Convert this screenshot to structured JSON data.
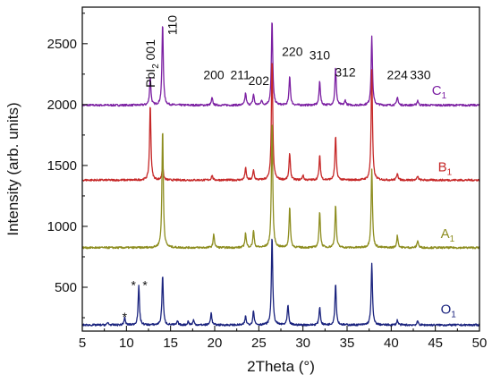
{
  "chart_data": {
    "type": "line",
    "xlabel": "2Theta (°)",
    "ylabel": "Intensity (arb. units)",
    "xlim": [
      5,
      50
    ],
    "ylim": [
      140,
      2800
    ],
    "x_ticks": [
      5,
      10,
      15,
      20,
      25,
      30,
      35,
      40,
      45,
      50
    ],
    "y_ticks": [
      500,
      1000,
      1500,
      2000,
      2500
    ],
    "grid": false,
    "series": [
      {
        "label_main": "C",
        "label_sub": "1",
        "color": "#7b1fa2",
        "baseline": 1995,
        "peaks": [
          [
            12.7,
            230
          ],
          [
            14.1,
            670
          ],
          [
            19.7,
            60
          ],
          [
            23.5,
            100
          ],
          [
            24.4,
            90
          ],
          [
            25.3,
            40
          ],
          [
            26.5,
            700
          ],
          [
            28.5,
            240
          ],
          [
            31.9,
            200
          ],
          [
            33.7,
            310
          ],
          [
            34.8,
            40
          ],
          [
            37.8,
            560
          ],
          [
            40.7,
            70
          ],
          [
            43.0,
            40
          ]
        ]
      },
      {
        "label_main": "B",
        "label_sub": "1",
        "color": "#c62828",
        "baseline": 1380,
        "peaks": [
          [
            12.7,
            620
          ],
          [
            14.1,
            120
          ],
          [
            19.7,
            40
          ],
          [
            23.5,
            100
          ],
          [
            24.4,
            80
          ],
          [
            26.5,
            1000
          ],
          [
            28.5,
            220
          ],
          [
            30.0,
            40
          ],
          [
            31.9,
            200
          ],
          [
            33.7,
            360
          ],
          [
            37.8,
            900
          ],
          [
            40.7,
            60
          ],
          [
            43.0,
            30
          ]
        ]
      },
      {
        "label_main": "A",
        "label_sub": "1",
        "color": "#8d8d1f",
        "baseline": 825,
        "peaks": [
          [
            14.1,
            980
          ],
          [
            19.9,
            110
          ],
          [
            23.5,
            120
          ],
          [
            24.4,
            140
          ],
          [
            26.5,
            1050
          ],
          [
            28.5,
            330
          ],
          [
            31.9,
            300
          ],
          [
            33.7,
            350
          ],
          [
            37.8,
            650
          ],
          [
            40.7,
            100
          ],
          [
            43.0,
            60
          ]
        ]
      },
      {
        "label_main": "O",
        "label_sub": "1",
        "color": "#1a237e",
        "baseline": 190,
        "peaks": [
          [
            7.9,
            20
          ],
          [
            9.8,
            60
          ],
          [
            11.4,
            320
          ],
          [
            14.1,
            410
          ],
          [
            15.8,
            30
          ],
          [
            17.0,
            30
          ],
          [
            17.6,
            40
          ],
          [
            19.6,
            100
          ],
          [
            23.5,
            70
          ],
          [
            24.4,
            120
          ],
          [
            26.5,
            730
          ],
          [
            28.3,
            160
          ],
          [
            31.9,
            150
          ],
          [
            33.7,
            340
          ],
          [
            37.8,
            500
          ],
          [
            40.7,
            40
          ],
          [
            43.0,
            30
          ]
        ]
      }
    ],
    "annotations": {
      "pbi2": {
        "prefix": "PbI",
        "sub": "2",
        "suffix": " 001",
        "color": "#b71c1c"
      },
      "hkl": [
        "110",
        "200",
        "211",
        "202",
        "220",
        "310",
        "312",
        "224",
        "330"
      ],
      "stars": [
        "*",
        "*",
        "*"
      ]
    }
  }
}
